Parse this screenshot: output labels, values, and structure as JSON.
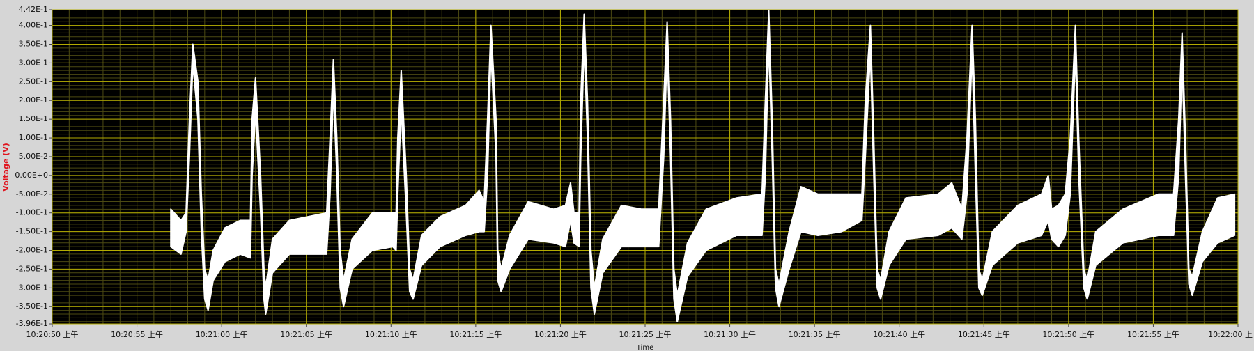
{
  "chart_data": {
    "type": "band",
    "ylabel": "Voltage (V)",
    "xlabel": "Time",
    "xlim": [
      37250,
      37320
    ],
    "xticks": [
      {
        "value": 37250,
        "label": "10:20:50 上午"
      },
      {
        "value": 37255,
        "label": "10:20:55 上午"
      },
      {
        "value": 37260,
        "label": "10:21:00 上午"
      },
      {
        "value": 37265,
        "label": "10:21:05 上午"
      },
      {
        "value": 37270,
        "label": "10:21:10 上午"
      },
      {
        "value": 37275,
        "label": "10:21:15 上午"
      },
      {
        "value": 37280,
        "label": "10:21:20 上午"
      },
      {
        "value": 37285,
        "label": "10:21:25 上午"
      },
      {
        "value": 37290,
        "label": "10:21:30 上午"
      },
      {
        "value": 37295,
        "label": "10:21:35 上午"
      },
      {
        "value": 37300,
        "label": "10:21:40 上午"
      },
      {
        "value": 37305,
        "label": "10:21:45 上午"
      },
      {
        "value": 37310,
        "label": "10:21:50 上午"
      },
      {
        "value": 37315,
        "label": "10:21:55 上午"
      },
      {
        "value": 37320,
        "label": "10:22:00 上"
      }
    ],
    "ylim": [
      -0.396,
      0.442
    ],
    "yticks": [
      {
        "value": 0.442,
        "label": "4.42E-1"
      },
      {
        "value": 0.4,
        "label": "4.00E-1"
      },
      {
        "value": 0.35,
        "label": "3.50E-1"
      },
      {
        "value": 0.3,
        "label": "3.00E-1"
      },
      {
        "value": 0.25,
        "label": "2.50E-1"
      },
      {
        "value": 0.2,
        "label": "2.00E-1"
      },
      {
        "value": 0.15,
        "label": "1.50E-1"
      },
      {
        "value": 0.1,
        "label": "1.00E-1"
      },
      {
        "value": 0.05,
        "label": "5.00E-2"
      },
      {
        "value": 0,
        "label": "0.00E+0"
      },
      {
        "value": -0.05,
        "label": "-5.00E-2"
      },
      {
        "value": -0.1,
        "label": "-1.00E-1"
      },
      {
        "value": -0.15,
        "label": "-1.50E-1"
      },
      {
        "value": -0.2,
        "label": "-2.00E-1"
      },
      {
        "value": -0.25,
        "label": "-2.50E-1"
      },
      {
        "value": -0.3,
        "label": "-3.00E-1"
      },
      {
        "value": -0.35,
        "label": "-3.50E-1"
      },
      {
        "value": -0.396,
        "label": "-3.96E-1"
      }
    ],
    "grid": true,
    "minor_grid": true,
    "grid_color": "#b4ac00",
    "minor_grid_color": "#4c4a12",
    "background": "#000000",
    "x": [
      37257.0,
      37257.6,
      37257.9,
      37258.1,
      37258.3,
      37258.6,
      37258.8,
      37259.0,
      37259.2,
      37259.5,
      37260.2,
      37261.1,
      37261.7,
      37261.8,
      37262.0,
      37262.3,
      37262.5,
      37262.6,
      37263.0,
      37264.0,
      37265.1,
      37266.2,
      37266.4,
      37266.6,
      37266.8,
      37267.0,
      37267.2,
      37267.7,
      37268.9,
      37270.1,
      37270.3,
      37270.4,
      37270.6,
      37270.9,
      37271.1,
      37271.3,
      37271.8,
      37272.9,
      37274.4,
      37275.2,
      37275.5,
      37275.7,
      37275.9,
      37276.2,
      37276.3,
      37276.5,
      37277.0,
      37278.1,
      37279.6,
      37280.3,
      37280.6,
      37280.8,
      37281.1,
      37281.2,
      37281.4,
      37281.6,
      37281.8,
      37282.0,
      37282.5,
      37283.6,
      37284.8,
      37285.8,
      37286.1,
      37286.3,
      37286.5,
      37286.7,
      37286.9,
      37287.5,
      37288.6,
      37290.4,
      37291.9,
      37292.1,
      37292.3,
      37292.5,
      37292.7,
      37292.9,
      37293.5,
      37294.2,
      37295.2,
      37296.6,
      37297.8,
      37298.0,
      37298.3,
      37298.5,
      37298.7,
      37298.9,
      37299.4,
      37300.4,
      37302.3,
      37303.1,
      37303.7,
      37304.0,
      37304.3,
      37304.5,
      37304.7,
      37304.9,
      37305.5,
      37307.0,
      37308.4,
      37308.8,
      37309.0,
      37309.4,
      37309.8,
      37310.1,
      37310.4,
      37310.6,
      37310.9,
      37311.1,
      37311.6,
      37313.2,
      37315.3,
      37316.2,
      37316.5,
      37316.7,
      37316.9,
      37317.1,
      37317.3,
      37317.9,
      37318.8,
      37319.8
    ],
    "series": [
      {
        "color": "#ffffff",
        "values": [
          -0.09,
          -0.12,
          -0.1,
          0.15,
          0.35,
          0.25,
          -0.05,
          -0.25,
          -0.28,
          -0.2,
          -0.14,
          -0.12,
          -0.12,
          0.15,
          0.26,
          0.0,
          -0.25,
          -0.3,
          -0.17,
          -0.12,
          -0.11,
          -0.1,
          0.1,
          0.31,
          0.1,
          -0.2,
          -0.28,
          -0.17,
          -0.1,
          -0.1,
          -0.1,
          0.1,
          0.28,
          0.0,
          -0.25,
          -0.28,
          -0.16,
          -0.11,
          -0.08,
          -0.04,
          -0.07,
          0.15,
          0.4,
          0.15,
          -0.2,
          -0.25,
          -0.16,
          -0.07,
          -0.09,
          -0.08,
          -0.02,
          -0.1,
          -0.1,
          0.2,
          0.43,
          0.2,
          -0.2,
          -0.3,
          -0.17,
          -0.08,
          -0.09,
          -0.09,
          0.2,
          0.41,
          0.15,
          -0.25,
          -0.32,
          -0.18,
          -0.09,
          -0.06,
          -0.05,
          0.2,
          0.44,
          0.15,
          -0.25,
          -0.29,
          -0.15,
          -0.03,
          -0.05,
          -0.05,
          -0.05,
          0.2,
          0.4,
          0.1,
          -0.25,
          -0.28,
          -0.15,
          -0.06,
          -0.05,
          -0.02,
          -0.09,
          0.1,
          0.4,
          0.15,
          -0.25,
          -0.28,
          -0.15,
          -0.08,
          -0.05,
          0.0,
          -0.09,
          -0.08,
          -0.05,
          0.1,
          0.4,
          0.1,
          -0.25,
          -0.28,
          -0.15,
          -0.09,
          -0.05,
          -0.05,
          0.15,
          0.38,
          0.1,
          -0.25,
          -0.27,
          -0.15,
          -0.06,
          -0.05
        ]
      },
      {
        "color": "#ffffff",
        "values": [
          -0.19,
          -0.21,
          -0.15,
          0.05,
          0.3,
          0.15,
          -0.15,
          -0.33,
          -0.36,
          -0.28,
          -0.23,
          -0.21,
          -0.22,
          0.0,
          0.17,
          -0.1,
          -0.33,
          -0.37,
          -0.26,
          -0.21,
          -0.21,
          -0.21,
          -0.05,
          0.23,
          0.0,
          -0.3,
          -0.35,
          -0.25,
          -0.2,
          -0.19,
          -0.2,
          -0.05,
          0.18,
          -0.1,
          -0.31,
          -0.33,
          -0.24,
          -0.19,
          -0.16,
          -0.15,
          -0.15,
          0.0,
          0.33,
          0.05,
          -0.28,
          -0.31,
          -0.25,
          -0.17,
          -0.18,
          -0.19,
          -0.12,
          -0.18,
          -0.19,
          0.05,
          0.35,
          0.1,
          -0.3,
          -0.37,
          -0.26,
          -0.19,
          -0.19,
          -0.19,
          0.05,
          0.34,
          0.05,
          -0.33,
          -0.39,
          -0.27,
          -0.2,
          -0.16,
          -0.16,
          0.0,
          0.36,
          0.05,
          -0.3,
          -0.35,
          -0.25,
          -0.15,
          -0.16,
          -0.15,
          -0.12,
          0.05,
          0.33,
          0.0,
          -0.3,
          -0.33,
          -0.24,
          -0.17,
          -0.16,
          -0.14,
          -0.17,
          -0.05,
          0.33,
          0.0,
          -0.3,
          -0.32,
          -0.24,
          -0.18,
          -0.16,
          -0.12,
          -0.17,
          -0.19,
          -0.16,
          -0.05,
          0.33,
          0.0,
          -0.3,
          -0.33,
          -0.24,
          -0.18,
          -0.16,
          -0.16,
          0.0,
          0.31,
          0.0,
          -0.29,
          -0.32,
          -0.23,
          -0.18,
          -0.16
        ]
      }
    ]
  }
}
